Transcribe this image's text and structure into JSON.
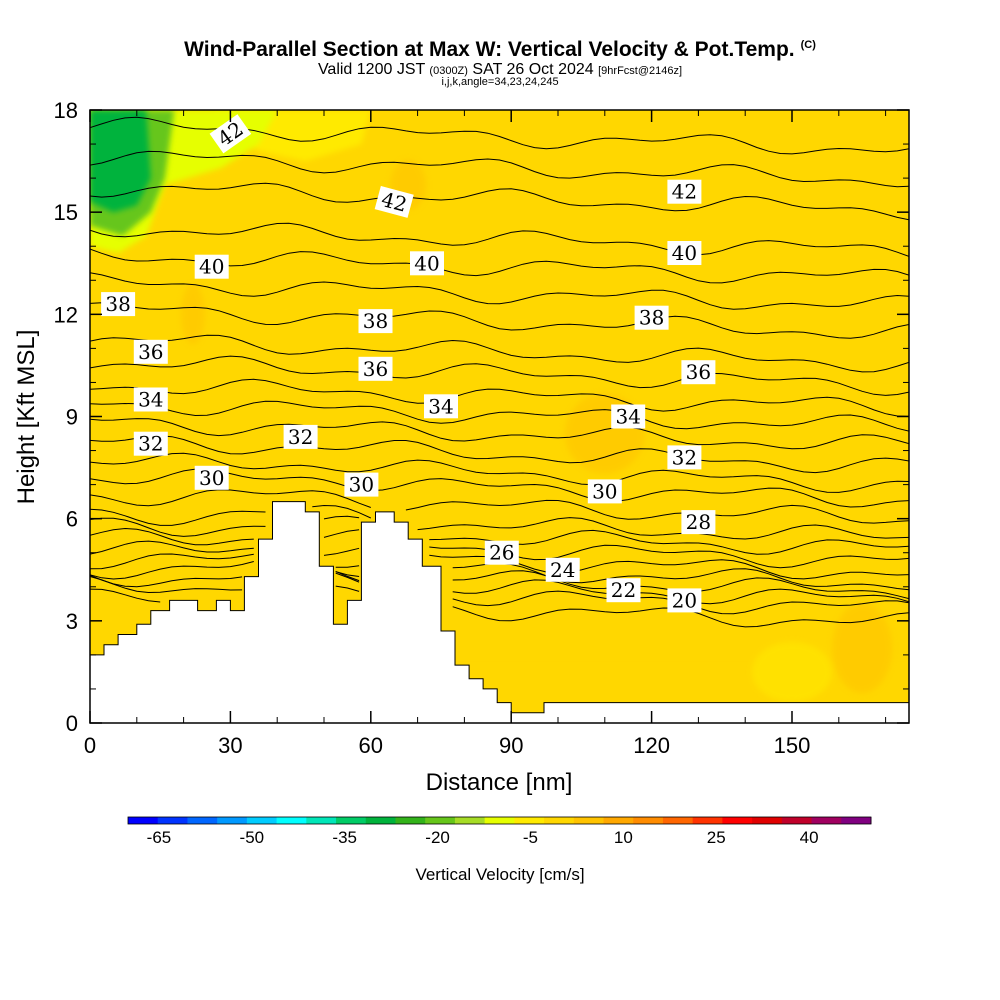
{
  "header": {
    "title": "Wind-Parallel Section at Max W: Vertical Velocity & Pot.Temp.",
    "copyright": "(C)",
    "valid_prefix": "Valid 1200 JST",
    "valid_utc": "(0300Z)",
    "valid_date": "SAT 26 Oct 2024",
    "forecast": "[9hrFcst@2146z]",
    "ijk": "i,j,k,angle=34,23,24,245"
  },
  "chart_data": {
    "type": "contour",
    "xlabel": "Distance [nm]",
    "ylabel": "Height [Kft MSL]",
    "xlim": [
      0,
      175
    ],
    "ylim": [
      0,
      18
    ],
    "x_ticks": [
      0,
      30,
      60,
      90,
      120,
      150
    ],
    "y_ticks": [
      0,
      3,
      6,
      9,
      12,
      15,
      18
    ],
    "terrain": {
      "x": [
        0,
        0,
        3,
        3,
        6,
        6,
        10,
        10,
        13,
        13,
        17,
        17,
        20,
        20,
        23,
        23,
        27,
        27,
        30,
        30,
        33,
        33,
        36,
        36,
        39,
        39,
        42,
        42,
        46,
        46,
        49,
        49,
        52,
        52,
        55,
        55,
        58,
        58,
        61,
        61,
        65,
        65,
        68,
        68,
        71,
        71,
        75,
        75,
        78,
        78,
        81,
        81,
        84,
        84,
        87,
        87,
        90,
        90,
        94,
        94,
        97,
        97,
        100,
        100,
        103,
        103,
        145,
        145,
        175,
        175
      ],
      "y": [
        0,
        2.0,
        2.0,
        2.3,
        2.3,
        2.6,
        2.6,
        2.9,
        2.9,
        3.3,
        3.3,
        3.6,
        3.6,
        3.6,
        3.6,
        3.3,
        3.3,
        3.6,
        3.6,
        3.3,
        3.3,
        4.3,
        4.3,
        5.4,
        5.4,
        6.5,
        6.5,
        6.5,
        6.5,
        6.2,
        6.2,
        4.6,
        4.6,
        2.9,
        2.9,
        3.6,
        3.6,
        5.9,
        5.9,
        6.2,
        6.2,
        5.9,
        5.9,
        5.4,
        5.4,
        4.6,
        4.6,
        2.7,
        2.7,
        1.7,
        1.7,
        1.3,
        1.3,
        1.0,
        1.0,
        0.6,
        0.6,
        0.3,
        0.3,
        0.3,
        0.3,
        0.6,
        0.6,
        0.6,
        0.6,
        0.6,
        0.6,
        0.6,
        0.6,
        0
      ]
    },
    "isentropes": [
      {
        "theta": 20,
        "base": 3.3
      },
      {
        "theta": 21,
        "base": 3.7
      },
      {
        "theta": 22,
        "base": 3.95
      },
      {
        "theta": 23,
        "base": 4.2
      },
      {
        "theta": 24,
        "base": 4.45
      },
      {
        "theta": 25,
        "base": 4.75
      },
      {
        "theta": 26,
        "base": 5.1
      },
      {
        "theta": 27,
        "base": 5.45
      },
      {
        "theta": 28,
        "base": 5.8
      },
      {
        "theta": 29,
        "base": 6.35
      },
      {
        "theta": 30,
        "base": 6.9
      },
      {
        "theta": 31,
        "base": 7.35
      },
      {
        "theta": 32,
        "base": 7.9
      },
      {
        "theta": 33,
        "base": 8.5
      },
      {
        "theta": 34,
        "base": 9.05
      },
      {
        "theta": 35,
        "base": 9.6
      },
      {
        "theta": 36,
        "base": 10.25
      },
      {
        "theta": 37,
        "base": 10.9
      },
      {
        "theta": 38,
        "base": 11.8
      },
      {
        "theta": 39,
        "base": 12.6
      },
      {
        "theta": 40,
        "base": 13.4
      },
      {
        "theta": 41,
        "base": 14.2
      },
      {
        "theta": 42,
        "base": 15.4
      },
      {
        "theta": 43,
        "base": 16.3
      },
      {
        "theta": 44,
        "base": 17.2
      }
    ],
    "contour_labels": [
      {
        "text": "42",
        "x": 30,
        "y": 17.3,
        "rot": -35
      },
      {
        "text": "42",
        "x": 65,
        "y": 15.3,
        "rot": 15
      },
      {
        "text": "42",
        "x": 127,
        "y": 15.6,
        "rot": 0
      },
      {
        "text": "40",
        "x": 26,
        "y": 13.4,
        "rot": 0
      },
      {
        "text": "40",
        "x": 72,
        "y": 13.5,
        "rot": 0
      },
      {
        "text": "40",
        "x": 127,
        "y": 13.8,
        "rot": 0
      },
      {
        "text": "38",
        "x": 6,
        "y": 12.3,
        "rot": 0
      },
      {
        "text": "38",
        "x": 61,
        "y": 11.8,
        "rot": 0
      },
      {
        "text": "38",
        "x": 120,
        "y": 11.9,
        "rot": 0
      },
      {
        "text": "36",
        "x": 13,
        "y": 10.9,
        "rot": 0
      },
      {
        "text": "36",
        "x": 61,
        "y": 10.4,
        "rot": 0
      },
      {
        "text": "36",
        "x": 130,
        "y": 10.3,
        "rot": 0
      },
      {
        "text": "34",
        "x": 13,
        "y": 9.5,
        "rot": 0
      },
      {
        "text": "34",
        "x": 75,
        "y": 9.3,
        "rot": 0
      },
      {
        "text": "34",
        "x": 115,
        "y": 9.0,
        "rot": 0
      },
      {
        "text": "32",
        "x": 13,
        "y": 8.2,
        "rot": 0
      },
      {
        "text": "32",
        "x": 45,
        "y": 8.4,
        "rot": 0
      },
      {
        "text": "32",
        "x": 127,
        "y": 7.8,
        "rot": 0
      },
      {
        "text": "30",
        "x": 26,
        "y": 7.2,
        "rot": 0
      },
      {
        "text": "30",
        "x": 58,
        "y": 7.0,
        "rot": 0
      },
      {
        "text": "30",
        "x": 110,
        "y": 6.8,
        "rot": 0
      },
      {
        "text": "28",
        "x": 130,
        "y": 5.9,
        "rot": 0
      },
      {
        "text": "26",
        "x": 88,
        "y": 5.0,
        "rot": 0
      },
      {
        "text": "24",
        "x": 101,
        "y": 4.5,
        "rot": 0
      },
      {
        "text": "22",
        "x": 114,
        "y": 3.9,
        "rot": 0
      },
      {
        "text": "20",
        "x": 127,
        "y": 3.6,
        "rot": 0
      }
    ],
    "shading_regions": [
      {
        "value": -30,
        "poly": [
          [
            0,
            18
          ],
          [
            12,
            18
          ],
          [
            13,
            16
          ],
          [
            10,
            15.2
          ],
          [
            5,
            15.0
          ],
          [
            0,
            15.3
          ]
        ]
      },
      {
        "value": -20,
        "poly": [
          [
            0,
            18
          ],
          [
            18,
            18
          ],
          [
            16,
            16
          ],
          [
            13,
            15
          ],
          [
            7,
            14.3
          ],
          [
            0,
            14.6
          ]
        ]
      },
      {
        "value": -10,
        "poly": [
          [
            0,
            18
          ],
          [
            40,
            18
          ],
          [
            36,
            17
          ],
          [
            28,
            16.3
          ],
          [
            16,
            15.8
          ],
          [
            12,
            14.3
          ],
          [
            6,
            13.8
          ],
          [
            0,
            14.0
          ]
        ]
      },
      {
        "value": -5,
        "poly": [
          [
            26,
            18
          ],
          [
            60,
            18
          ],
          [
            58,
            17
          ],
          [
            46,
            16.5
          ],
          [
            36,
            16.8
          ]
        ]
      },
      {
        "value": 0,
        "poly": [
          [
            0,
            2.0
          ],
          [
            175,
            2.0
          ],
          [
            175,
            18
          ],
          [
            0,
            18
          ]
        ]
      }
    ],
    "colorbar": {
      "label": "Vertical Velocity [cm/s]",
      "ticks": [
        -65,
        -50,
        -35,
        -20,
        -5,
        10,
        25,
        40
      ],
      "min": -70,
      "max": 50,
      "step": 5,
      "colors": [
        "#0000ff",
        "#0033ff",
        "#0066ff",
        "#0099ff",
        "#00ccff",
        "#00ffff",
        "#00e6b8",
        "#00cc66",
        "#00b33c",
        "#33b31a",
        "#66c61a",
        "#a6dc26",
        "#e6ff00",
        "#ffea00",
        "#ffd700",
        "#ffc300",
        "#ffa800",
        "#ff8c00",
        "#ff6600",
        "#ff3300",
        "#ff0000",
        "#e00000",
        "#c0002a",
        "#a00060",
        "#800080"
      ]
    }
  }
}
